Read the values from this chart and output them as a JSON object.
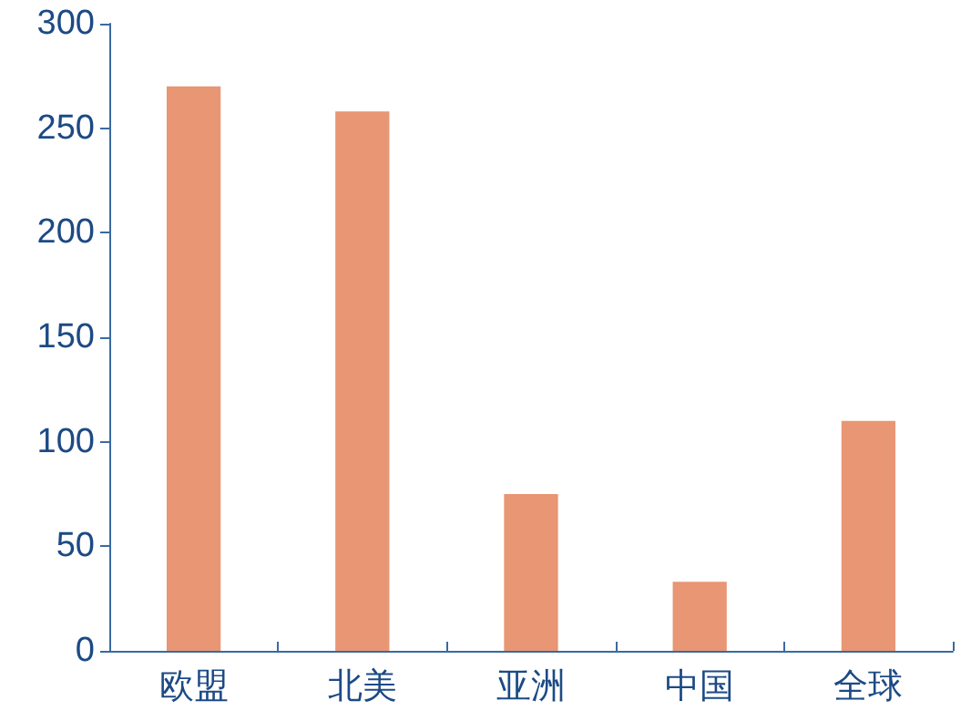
{
  "chart_data": {
    "type": "bar",
    "categories": [
      "欧盟",
      "北美",
      "亚洲",
      "中国",
      "全球"
    ],
    "values": [
      270,
      258,
      75,
      33,
      110
    ],
    "color": "#e89673",
    "ylim": [
      0,
      300
    ],
    "yticks": [
      0,
      50,
      100,
      150,
      200,
      250,
      300
    ],
    "grid": false
  }
}
